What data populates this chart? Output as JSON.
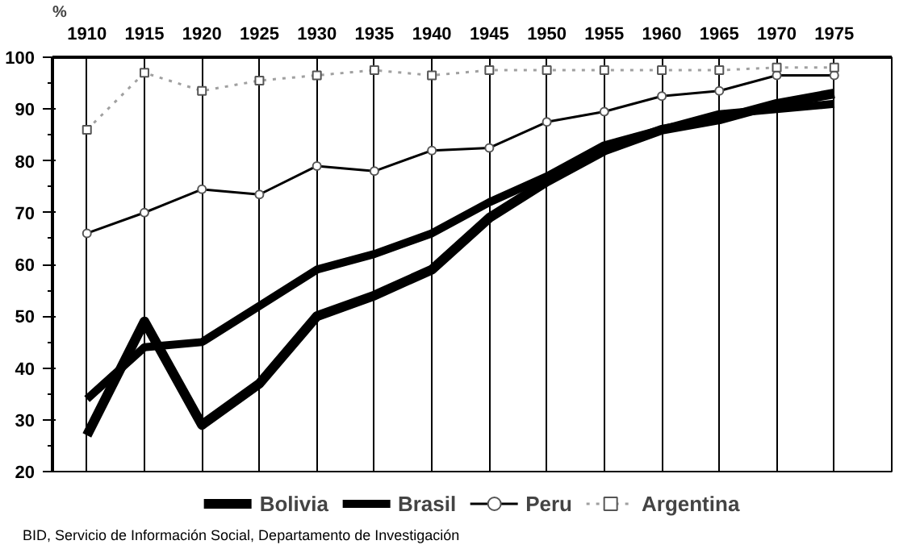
{
  "chart_data": {
    "type": "line",
    "ylabel": "%",
    "x": [
      1910,
      1915,
      1920,
      1925,
      1930,
      1935,
      1940,
      1945,
      1950,
      1955,
      1960,
      1965,
      1970,
      1975
    ],
    "xlim": [
      1907,
      1980
    ],
    "xticks": [
      1910,
      1915,
      1920,
      1925,
      1930,
      1935,
      1940,
      1945,
      1950,
      1955,
      1960,
      1965,
      1970,
      1975
    ],
    "ylim": [
      20,
      100
    ],
    "yticks": [
      20,
      30,
      40,
      50,
      60,
      70,
      80,
      90,
      100
    ],
    "grid": "x",
    "legend": "bottom",
    "series": [
      {
        "name": "Bolivia",
        "color": "#000000",
        "marker": "none",
        "line_style": "solid",
        "values": [
          27,
          49,
          29,
          37,
          50,
          54,
          59,
          69,
          76,
          82,
          86,
          88,
          91,
          93
        ]
      },
      {
        "name": "Brasil",
        "color": "#000000",
        "marker": "none",
        "line_style": "solid",
        "values": [
          34,
          44,
          45,
          52,
          59,
          62,
          66,
          72,
          77,
          83,
          86,
          89,
          90,
          91
        ]
      },
      {
        "name": "Peru",
        "color": "#000000",
        "marker": "circle",
        "line_style": "solid",
        "values": [
          66,
          70,
          74.5,
          73.5,
          79,
          78,
          82,
          82.5,
          87.5,
          89.5,
          92.5,
          93.5,
          96.5,
          96.5
        ]
      },
      {
        "name": "Argentina",
        "color": "#a0a0a0",
        "marker": "square",
        "line_style": "dotted",
        "values": [
          86,
          97,
          93.5,
          95.5,
          96.5,
          97.5,
          96.5,
          97.5,
          97.5,
          97.5,
          97.5,
          97.5,
          98,
          98
        ]
      }
    ],
    "annotations": [
      "BID, Servicio de Información Social, Departamento de Investigación"
    ]
  }
}
